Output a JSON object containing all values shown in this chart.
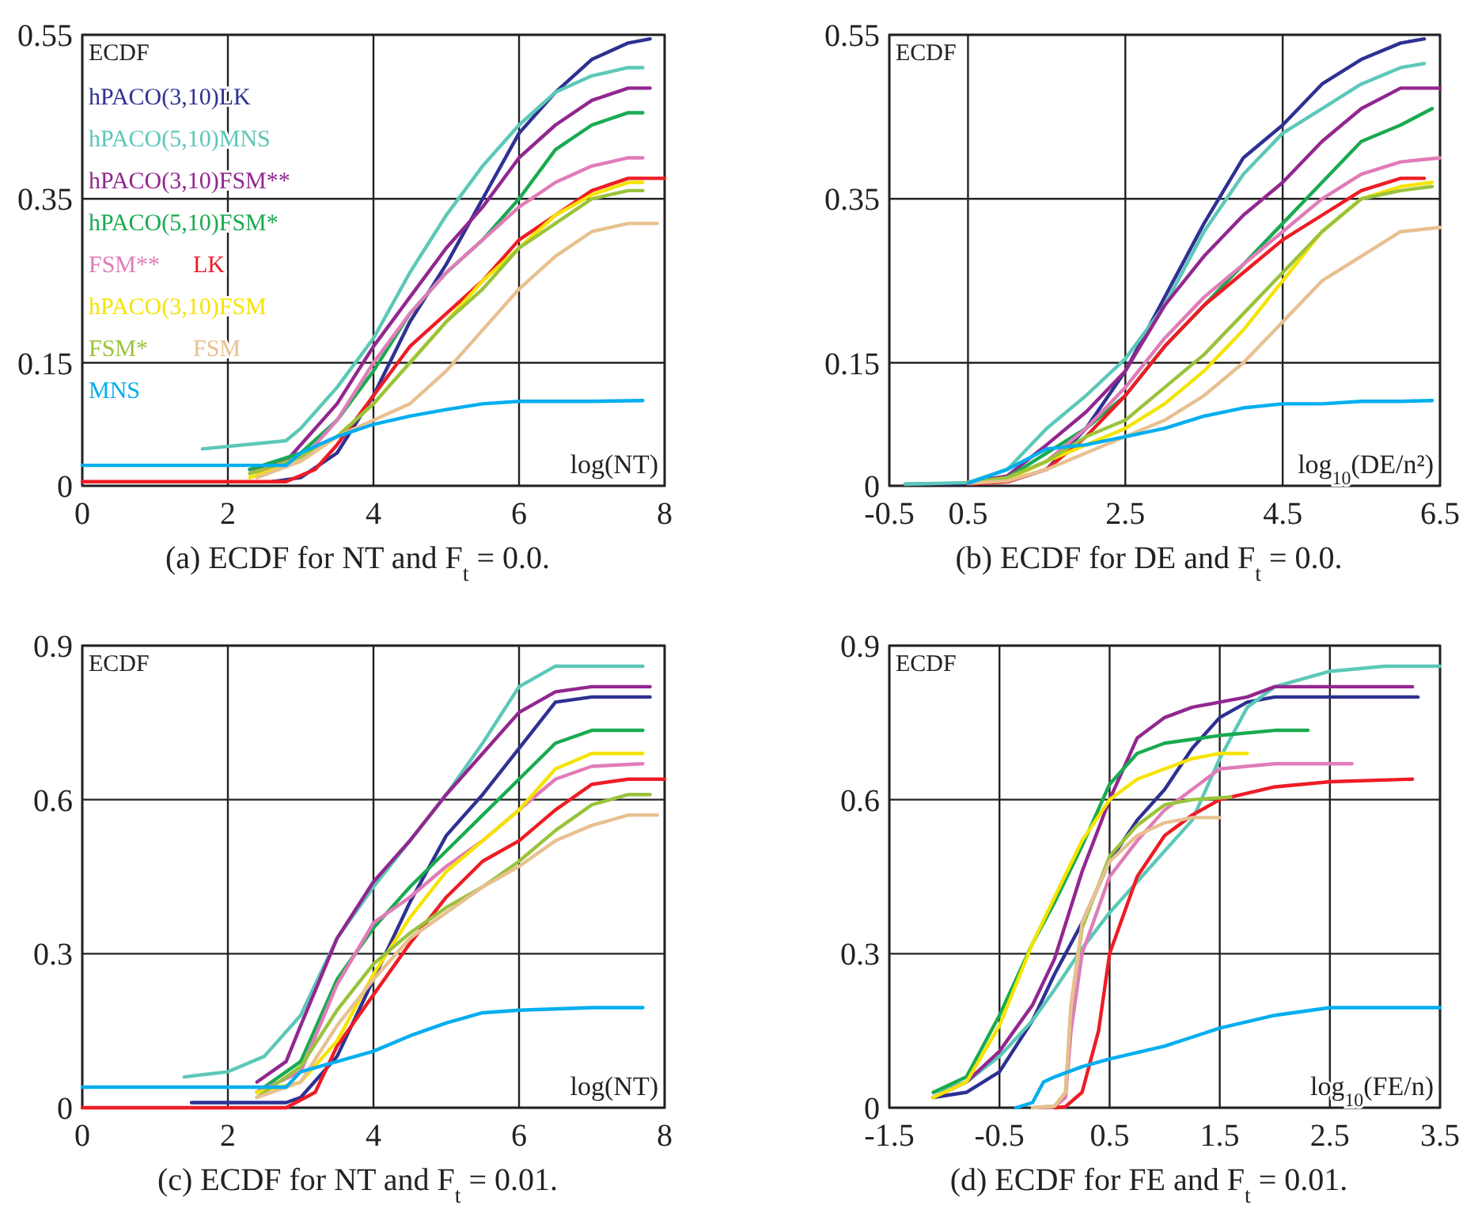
{
  "chart_data": [
    {
      "type": "line",
      "title": "(a) ECDF for NT and F$_{t}$ = 0.0.",
      "xlabel": "log(NT)",
      "ylabel": "ECDF",
      "xlim": [
        0,
        8
      ],
      "ylim": [
        0,
        0.55
      ],
      "xticks": [
        0,
        2,
        4,
        6,
        8
      ],
      "yticks": [
        0,
        0.15,
        0.35,
        0.55
      ],
      "grid": true,
      "legend": "top left",
      "series": [
        {
          "name": "hPACO(3,10)LK",
          "color": "#2e3192",
          "x": [
            2.6,
            3,
            3.5,
            4,
            4.5,
            5,
            5.5,
            6,
            6.5,
            7,
            7.5,
            7.8
          ],
          "values": [
            0.005,
            0.01,
            0.04,
            0.11,
            0.2,
            0.27,
            0.35,
            0.43,
            0.48,
            0.52,
            0.54,
            0.545
          ]
        },
        {
          "name": "hPACO(5,10)MNS",
          "color": "#5cc8b8",
          "x": [
            1.65,
            2.8,
            3,
            3.5,
            4,
            4.5,
            5,
            5.5,
            6,
            6.5,
            7,
            7.5,
            7.7
          ],
          "values": [
            0.045,
            0.055,
            0.07,
            0.12,
            0.18,
            0.26,
            0.33,
            0.39,
            0.44,
            0.48,
            0.5,
            0.51,
            0.51
          ]
        },
        {
          "name": "hPACO(3,10)FSM**",
          "color": "#92278f",
          "x": [
            2.3,
            2.8,
            3,
            3.5,
            4,
            4.5,
            5,
            5.5,
            6,
            6.5,
            7,
            7.5,
            7.8
          ],
          "values": [
            0.02,
            0.03,
            0.05,
            0.1,
            0.17,
            0.23,
            0.29,
            0.34,
            0.4,
            0.44,
            0.47,
            0.485,
            0.485
          ]
        },
        {
          "name": "hPACO(5,10)FSM*",
          "color": "#1aaa50",
          "x": [
            2.3,
            3,
            3.5,
            4,
            4.5,
            5,
            5.5,
            6,
            6.5,
            7,
            7.5,
            7.7
          ],
          "values": [
            0.02,
            0.04,
            0.08,
            0.14,
            0.21,
            0.26,
            0.3,
            0.35,
            0.41,
            0.44,
            0.455,
            0.455
          ]
        },
        {
          "name": "FSM**",
          "color": "#e07cb8",
          "x": [
            2.4,
            3,
            3.5,
            4,
            4.5,
            5,
            5.5,
            6,
            6.5,
            7,
            7.5,
            7.7
          ],
          "values": [
            0.015,
            0.03,
            0.08,
            0.15,
            0.21,
            0.26,
            0.3,
            0.34,
            0.37,
            0.39,
            0.4,
            0.4
          ]
        },
        {
          "name": "LK",
          "color": "#ee1c25",
          "x": [
            0,
            2.8,
            3.2,
            3.5,
            4,
            4.5,
            5,
            5.5,
            6,
            6.5,
            7,
            7.5,
            8
          ],
          "values": [
            0.005,
            0.005,
            0.02,
            0.05,
            0.11,
            0.17,
            0.21,
            0.25,
            0.3,
            0.33,
            0.36,
            0.375,
            0.375
          ]
        },
        {
          "name": "hPACO(3,10)FSM",
          "color": "#f5e400",
          "x": [
            2.3,
            3,
            3.5,
            4,
            4.5,
            5,
            5.5,
            6,
            6.5,
            7,
            7.5,
            7.7
          ],
          "values": [
            0.01,
            0.03,
            0.06,
            0.1,
            0.15,
            0.2,
            0.25,
            0.29,
            0.33,
            0.355,
            0.37,
            0.37
          ]
        },
        {
          "name": "FSM*",
          "color": "#9ac33c",
          "x": [
            2.3,
            3,
            3.5,
            4,
            4.5,
            5,
            5.5,
            6,
            6.5,
            7,
            7.5,
            7.7
          ],
          "values": [
            0.015,
            0.035,
            0.06,
            0.1,
            0.15,
            0.2,
            0.24,
            0.29,
            0.32,
            0.35,
            0.36,
            0.36
          ]
        },
        {
          "name": "FSM",
          "color": "#e8c090",
          "x": [
            2.4,
            3,
            3.5,
            4,
            4.5,
            5,
            5.5,
            6,
            6.5,
            7,
            7.5,
            7.9
          ],
          "values": [
            0.01,
            0.03,
            0.06,
            0.08,
            0.1,
            0.14,
            0.19,
            0.24,
            0.28,
            0.31,
            0.32,
            0.32
          ]
        },
        {
          "name": "MNS",
          "color": "#00aeef",
          "x": [
            0,
            2.8,
            3,
            3.5,
            4,
            4.5,
            5,
            5.5,
            6,
            7,
            7.7
          ],
          "values": [
            0.025,
            0.025,
            0.04,
            0.06,
            0.075,
            0.085,
            0.093,
            0.1,
            0.103,
            0.103,
            0.104
          ]
        }
      ]
    },
    {
      "type": "line",
      "title": "(b) ECDF for DE and F$_{t}$ = 0.0.",
      "xlabel": "log$_{10}$(DE/n²)",
      "ylabel": "ECDF",
      "xlim": [
        -0.5,
        6.5
      ],
      "ylim": [
        0,
        0.55
      ],
      "xticks": [
        -0.5,
        0.5,
        2.5,
        4.5,
        6.5
      ],
      "yticks": [
        0,
        0.15,
        0.35,
        0.55
      ],
      "grid": true,
      "series": [
        {
          "color": "#2e3192",
          "x": [
            -0.3,
            0.5,
            1,
            1.5,
            2,
            2.5,
            3,
            3.5,
            4,
            4.5,
            5,
            5.5,
            6,
            6.3
          ],
          "values": [
            0.002,
            0.003,
            0.005,
            0.02,
            0.07,
            0.14,
            0.23,
            0.32,
            0.4,
            0.44,
            0.49,
            0.52,
            0.54,
            0.545
          ]
        },
        {
          "color": "#5cc8b8",
          "x": [
            -0.3,
            0.5,
            1,
            1.5,
            2,
            2.5,
            3,
            3.5,
            4,
            4.5,
            5,
            5.5,
            6,
            6.3
          ],
          "values": [
            0.002,
            0.004,
            0.02,
            0.07,
            0.11,
            0.155,
            0.22,
            0.31,
            0.38,
            0.43,
            0.46,
            0.49,
            0.51,
            0.515
          ]
        },
        {
          "color": "#92278f",
          "x": [
            0.5,
            1,
            1.5,
            2,
            2.5,
            3,
            3.5,
            4,
            4.5,
            5,
            5.5,
            6,
            6.5
          ],
          "values": [
            0.004,
            0.012,
            0.05,
            0.09,
            0.14,
            0.22,
            0.28,
            0.33,
            0.37,
            0.42,
            0.46,
            0.485,
            0.485
          ]
        },
        {
          "color": "#1aaa50",
          "x": [
            0.5,
            1,
            1.5,
            2,
            2.5,
            3,
            3.5,
            4,
            4.5,
            5,
            5.5,
            6,
            6.4
          ],
          "values": [
            0.004,
            0.01,
            0.04,
            0.07,
            0.11,
            0.17,
            0.22,
            0.27,
            0.32,
            0.37,
            0.42,
            0.44,
            0.46
          ]
        },
        {
          "color": "#e07cb8",
          "x": [
            0.5,
            1,
            1.5,
            2,
            2.5,
            3,
            3.5,
            4,
            4.5,
            5,
            5.5,
            6,
            6.5
          ],
          "values": [
            0.003,
            0.008,
            0.03,
            0.07,
            0.12,
            0.18,
            0.23,
            0.27,
            0.31,
            0.35,
            0.38,
            0.395,
            0.4
          ]
        },
        {
          "color": "#ee1c25",
          "x": [
            0.5,
            1,
            1.5,
            2,
            2.5,
            3,
            3.5,
            4,
            4.5,
            5,
            5.5,
            6,
            6.3
          ],
          "values": [
            0.002,
            0.005,
            0.02,
            0.06,
            0.11,
            0.17,
            0.22,
            0.26,
            0.3,
            0.33,
            0.36,
            0.375,
            0.375
          ]
        },
        {
          "color": "#f5e400",
          "x": [
            0.5,
            1,
            1.5,
            2,
            2.5,
            3,
            3.5,
            4,
            4.5,
            5,
            5.5,
            6,
            6.4
          ],
          "values": [
            0.004,
            0.008,
            0.03,
            0.05,
            0.07,
            0.1,
            0.14,
            0.19,
            0.25,
            0.31,
            0.35,
            0.365,
            0.37
          ]
        },
        {
          "color": "#9ac33c",
          "x": [
            0.5,
            1,
            1.5,
            2,
            2.5,
            3,
            3.5,
            4,
            4.5,
            5,
            5.5,
            6,
            6.4
          ],
          "values": [
            0.004,
            0.01,
            0.03,
            0.06,
            0.08,
            0.12,
            0.16,
            0.21,
            0.26,
            0.31,
            0.35,
            0.36,
            0.365
          ]
        },
        {
          "color": "#e8c090",
          "x": [
            0.5,
            1,
            1.5,
            2,
            2.5,
            3,
            3.5,
            4,
            4.5,
            5,
            5.5,
            6,
            6.5
          ],
          "values": [
            0.003,
            0.006,
            0.02,
            0.04,
            0.06,
            0.08,
            0.11,
            0.15,
            0.2,
            0.25,
            0.28,
            0.31,
            0.315
          ]
        },
        {
          "color": "#00aeef",
          "x": [
            0.5,
            1,
            1.5,
            2,
            2.5,
            3,
            3.5,
            4,
            4.5,
            5,
            5.5,
            6,
            6.4
          ],
          "values": [
            0.003,
            0.02,
            0.045,
            0.05,
            0.06,
            0.07,
            0.085,
            0.095,
            0.1,
            0.1,
            0.103,
            0.103,
            0.104
          ]
        }
      ]
    },
    {
      "type": "line",
      "title": "(c) ECDF for NT and F$_{t}$ = 0.01.",
      "xlabel": "log(NT)",
      "ylabel": "ECDF",
      "xlim": [
        0,
        8
      ],
      "ylim": [
        0,
        0.9
      ],
      "xticks": [
        0,
        2,
        4,
        6,
        8
      ],
      "yticks": [
        0,
        0.3,
        0.6,
        0.9
      ],
      "grid": true,
      "series": [
        {
          "color": "#2e3192",
          "x": [
            1.5,
            2.8,
            3,
            3.5,
            4,
            4.5,
            5,
            5.5,
            6,
            6.5,
            7,
            7.8
          ],
          "values": [
            0.01,
            0.01,
            0.02,
            0.1,
            0.25,
            0.4,
            0.53,
            0.61,
            0.7,
            0.79,
            0.8,
            0.8
          ]
        },
        {
          "color": "#5cc8b8",
          "x": [
            1.4,
            2,
            2.5,
            3,
            3.5,
            4,
            4.5,
            5,
            5.5,
            6,
            6.5,
            7.7
          ],
          "values": [
            0.06,
            0.07,
            0.1,
            0.18,
            0.33,
            0.43,
            0.52,
            0.61,
            0.71,
            0.82,
            0.86,
            0.86
          ]
        },
        {
          "color": "#92278f",
          "x": [
            2.4,
            2.8,
            3,
            3.5,
            4,
            4.5,
            5,
            5.5,
            6,
            6.5,
            7,
            7.8
          ],
          "values": [
            0.05,
            0.09,
            0.16,
            0.33,
            0.44,
            0.52,
            0.61,
            0.69,
            0.77,
            0.81,
            0.82,
            0.82
          ]
        },
        {
          "color": "#1aaa50",
          "x": [
            2.4,
            3,
            3.5,
            4,
            4.5,
            5,
            5.5,
            6,
            6.5,
            7,
            7.7
          ],
          "values": [
            0.03,
            0.09,
            0.25,
            0.35,
            0.43,
            0.5,
            0.57,
            0.64,
            0.71,
            0.735,
            0.735
          ]
        },
        {
          "color": "#e07cb8",
          "x": [
            2.4,
            3,
            3.5,
            4,
            4.5,
            5,
            5.5,
            6,
            6.5,
            7,
            7.7
          ],
          "values": [
            0.03,
            0.07,
            0.24,
            0.36,
            0.41,
            0.47,
            0.52,
            0.58,
            0.64,
            0.665,
            0.67
          ]
        },
        {
          "color": "#ee1c25",
          "x": [
            0,
            2.8,
            3.2,
            3.5,
            4,
            4.5,
            5,
            5.5,
            6,
            6.5,
            7,
            7.5,
            8
          ],
          "values": [
            0,
            0,
            0.03,
            0.12,
            0.22,
            0.32,
            0.41,
            0.48,
            0.52,
            0.58,
            0.63,
            0.64,
            0.64
          ]
        },
        {
          "color": "#f5e400",
          "x": [
            2.4,
            3,
            3.5,
            4,
            4.5,
            5,
            5.5,
            6,
            6.5,
            7,
            7.7
          ],
          "values": [
            0.03,
            0.05,
            0.13,
            0.26,
            0.37,
            0.46,
            0.52,
            0.58,
            0.66,
            0.69,
            0.69
          ]
        },
        {
          "color": "#9ac33c",
          "x": [
            2.4,
            3,
            3.5,
            4,
            4.5,
            5,
            5.5,
            6,
            6.5,
            7,
            7.5,
            7.8
          ],
          "values": [
            0.02,
            0.08,
            0.19,
            0.28,
            0.34,
            0.39,
            0.43,
            0.48,
            0.54,
            0.59,
            0.61,
            0.61
          ]
        },
        {
          "color": "#e8c090",
          "x": [
            2.4,
            3,
            3.5,
            4,
            4.5,
            5,
            5.5,
            6,
            6.5,
            7,
            7.5,
            7.9
          ],
          "values": [
            0.02,
            0.05,
            0.16,
            0.25,
            0.33,
            0.38,
            0.43,
            0.47,
            0.52,
            0.55,
            0.57,
            0.57
          ]
        },
        {
          "color": "#00aeef",
          "x": [
            0,
            2.8,
            3,
            3.5,
            4,
            4.5,
            5,
            5.5,
            6,
            7,
            7.7
          ],
          "values": [
            0.04,
            0.04,
            0.07,
            0.09,
            0.11,
            0.14,
            0.165,
            0.185,
            0.19,
            0.195,
            0.195
          ]
        }
      ]
    },
    {
      "type": "line",
      "title": "(d) ECDF for FE and F$_{t}$ = 0.01.",
      "xlabel": "log$_{10}$(FE/n)",
      "ylabel": "ECDF",
      "xlim": [
        -1.5,
        3.5
      ],
      "ylim": [
        0,
        0.9
      ],
      "xticks": [
        -1.5,
        -0.5,
        0.5,
        1.5,
        2.5,
        3.5
      ],
      "yticks": [
        0,
        0.3,
        0.6,
        0.9
      ],
      "grid": true,
      "series": [
        {
          "color": "#2e3192",
          "x": [
            -1.1,
            -0.8,
            -0.5,
            -0.2,
            0,
            0.25,
            0.5,
            0.75,
            1,
            1.25,
            1.5,
            1.75,
            2,
            3.3
          ],
          "values": [
            0.02,
            0.03,
            0.07,
            0.17,
            0.26,
            0.36,
            0.48,
            0.56,
            0.62,
            0.7,
            0.76,
            0.79,
            0.8,
            0.8
          ]
        },
        {
          "color": "#5cc8b8",
          "x": [
            -1.1,
            -0.8,
            -0.5,
            -0.2,
            0,
            0.25,
            0.5,
            0.75,
            1,
            1.25,
            1.5,
            1.75,
            2,
            2.5,
            3,
            3.5
          ],
          "values": [
            0.03,
            0.05,
            0.1,
            0.17,
            0.23,
            0.31,
            0.38,
            0.44,
            0.5,
            0.56,
            0.68,
            0.78,
            0.82,
            0.85,
            0.86,
            0.86
          ]
        },
        {
          "color": "#92278f",
          "x": [
            -1.1,
            -0.8,
            -0.5,
            -0.2,
            0,
            0.25,
            0.5,
            0.75,
            1,
            1.25,
            1.5,
            1.75,
            2,
            3.25
          ],
          "values": [
            0.02,
            0.05,
            0.11,
            0.2,
            0.29,
            0.46,
            0.6,
            0.72,
            0.76,
            0.78,
            0.79,
            0.8,
            0.82,
            0.82
          ]
        },
        {
          "color": "#1aaa50",
          "x": [
            -1.1,
            -0.8,
            -0.5,
            -0.2,
            0,
            0.25,
            0.5,
            0.75,
            1,
            1.5,
            2,
            2.3
          ],
          "values": [
            0.03,
            0.06,
            0.18,
            0.32,
            0.4,
            0.51,
            0.63,
            0.69,
            0.71,
            0.725,
            0.735,
            0.735
          ]
        },
        {
          "color": "#e07cb8",
          "x": [
            -0.1,
            0,
            0.1,
            0.15,
            0.25,
            0.5,
            0.75,
            1,
            1.25,
            1.5,
            2,
            2.7
          ],
          "values": [
            0,
            0.002,
            0.02,
            0.15,
            0.3,
            0.45,
            0.52,
            0.58,
            0.62,
            0.66,
            0.67,
            0.67
          ]
        },
        {
          "color": "#ee1c25",
          "x": [
            0,
            0.1,
            0.25,
            0.4,
            0.5,
            0.75,
            1,
            1.25,
            1.5,
            2,
            2.5,
            3.25
          ],
          "values": [
            0,
            0.002,
            0.03,
            0.15,
            0.3,
            0.45,
            0.53,
            0.57,
            0.6,
            0.625,
            0.635,
            0.64
          ]
        },
        {
          "color": "#f5e400",
          "x": [
            -1.1,
            -0.8,
            -0.5,
            -0.2,
            0,
            0.25,
            0.5,
            0.75,
            1,
            1.25,
            1.5,
            1.75
          ],
          "values": [
            0.02,
            0.05,
            0.16,
            0.32,
            0.41,
            0.52,
            0.6,
            0.64,
            0.66,
            0.68,
            0.69,
            0.69
          ]
        },
        {
          "color": "#9ac33c",
          "x": [
            -0.2,
            0,
            0.1,
            0.15,
            0.25,
            0.5,
            0.75,
            1,
            1.25,
            1.6
          ],
          "values": [
            0,
            0.003,
            0.03,
            0.2,
            0.35,
            0.49,
            0.55,
            0.59,
            0.6,
            0.605
          ]
        },
        {
          "color": "#e8c090",
          "x": [
            -0.2,
            0,
            0.1,
            0.15,
            0.25,
            0.5,
            0.75,
            1,
            1.25,
            1.5
          ],
          "values": [
            0,
            0.003,
            0.03,
            0.2,
            0.36,
            0.48,
            0.53,
            0.555,
            0.565,
            0.565
          ]
        },
        {
          "color": "#00aeef",
          "x": [
            -0.35,
            -0.2,
            -0.1,
            0,
            0.25,
            0.5,
            1,
            1.5,
            2,
            2.5,
            3.5
          ],
          "values": [
            0,
            0.01,
            0.05,
            0.06,
            0.08,
            0.095,
            0.12,
            0.155,
            0.18,
            0.195,
            0.195
          ]
        }
      ]
    }
  ]
}
